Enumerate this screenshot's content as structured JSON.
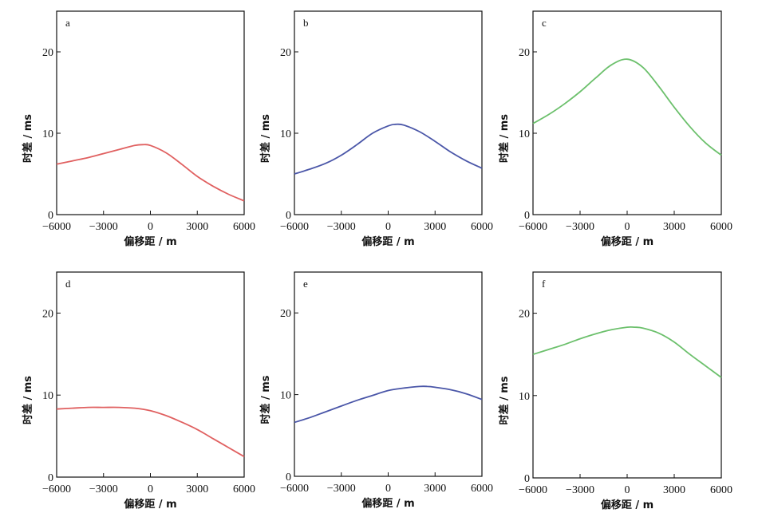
{
  "chart_data": [
    {
      "id": "a",
      "type": "line",
      "panel_label": "a",
      "xlabel": "偏移距 / m",
      "ylabel": "时差 / ms",
      "xlim": [
        -6000,
        6000
      ],
      "ylim": [
        0,
        25
      ],
      "xticks": [
        -6000,
        -3000,
        0,
        3000,
        6000
      ],
      "yticks": [
        0,
        10,
        20
      ],
      "series": [
        {
          "color": "#e06060",
          "x": [
            -6000,
            -5000,
            -4000,
            -3000,
            -2000,
            -1000,
            -500,
            0,
            1000,
            2000,
            3000,
            4000,
            5000,
            6000
          ],
          "y": [
            6.2,
            6.6,
            7.0,
            7.5,
            8.0,
            8.5,
            8.6,
            8.5,
            7.6,
            6.2,
            4.7,
            3.5,
            2.5,
            1.7
          ]
        }
      ]
    },
    {
      "id": "b",
      "type": "line",
      "panel_label": "b",
      "xlabel": "偏移距 / m",
      "ylabel": "时差 / ms",
      "xlim": [
        -6000,
        6000
      ],
      "ylim": [
        0,
        25
      ],
      "xticks": [
        -6000,
        -3000,
        0,
        3000,
        6000
      ],
      "yticks": [
        0,
        10,
        20
      ],
      "series": [
        {
          "color": "#4a56a8",
          "x": [
            -6000,
            -5000,
            -4000,
            -3000,
            -2000,
            -1000,
            0,
            500,
            1000,
            2000,
            3000,
            4000,
            5000,
            6000
          ],
          "y": [
            5.0,
            5.6,
            6.3,
            7.3,
            8.6,
            10.0,
            10.9,
            11.1,
            11.0,
            10.2,
            9.0,
            7.7,
            6.6,
            5.7
          ]
        }
      ]
    },
    {
      "id": "c",
      "type": "line",
      "panel_label": "c",
      "xlabel": "偏移距 / m",
      "ylabel": "时差 / ms",
      "xlim": [
        -6000,
        6000
      ],
      "ylim": [
        0,
        25
      ],
      "xticks": [
        -6000,
        -3000,
        0,
        3000,
        6000
      ],
      "yticks": [
        0,
        10,
        20
      ],
      "series": [
        {
          "color": "#6cc06c",
          "x": [
            -6000,
            -5000,
            -4000,
            -3000,
            -2000,
            -1000,
            0,
            1000,
            2000,
            3000,
            4000,
            5000,
            6000
          ],
          "y": [
            11.2,
            12.3,
            13.6,
            15.1,
            16.8,
            18.4,
            19.1,
            18.1,
            15.8,
            13.2,
            10.8,
            8.8,
            7.3
          ]
        }
      ]
    },
    {
      "id": "d",
      "type": "line",
      "panel_label": "d",
      "xlabel": "偏移距 / m",
      "ylabel": "时差 / ms",
      "xlim": [
        -6000,
        6000
      ],
      "ylim": [
        0,
        25
      ],
      "xticks": [
        -6000,
        -3000,
        0,
        3000,
        6000
      ],
      "yticks": [
        0,
        10,
        20
      ],
      "series": [
        {
          "color": "#e06060",
          "x": [
            -6000,
            -5000,
            -4000,
            -3000,
            -2000,
            -1000,
            0,
            1000,
            2000,
            3000,
            4000,
            5000,
            6000
          ],
          "y": [
            8.3,
            8.4,
            8.5,
            8.5,
            8.5,
            8.4,
            8.1,
            7.5,
            6.7,
            5.8,
            4.7,
            3.6,
            2.5
          ]
        }
      ]
    },
    {
      "id": "e",
      "type": "line",
      "panel_label": "e",
      "xlabel": "偏移距 / m",
      "ylabel": "时差 / ms",
      "xlim": [
        -6000,
        6000
      ],
      "ylim": [
        0,
        25
      ],
      "xticks": [
        -6000,
        -3000,
        0,
        3000,
        6000
      ],
      "yticks": [
        0,
        10,
        20
      ],
      "series": [
        {
          "color": "#4a56a8",
          "x": [
            -6000,
            -5000,
            -4000,
            -3000,
            -2000,
            -1000,
            0,
            1000,
            2000,
            2500,
            3000,
            4000,
            5000,
            6000
          ],
          "y": [
            6.6,
            7.2,
            7.9,
            8.6,
            9.3,
            9.9,
            10.5,
            10.8,
            11.0,
            11.0,
            10.9,
            10.6,
            10.1,
            9.4
          ]
        }
      ]
    },
    {
      "id": "f",
      "type": "line",
      "panel_label": "f",
      "xlabel": "偏移距 / m",
      "ylabel": "时差 / ms",
      "xlim": [
        -6000,
        6000
      ],
      "ylim": [
        0,
        25
      ],
      "xticks": [
        -6000,
        -3000,
        0,
        3000,
        6000
      ],
      "yticks": [
        0,
        10,
        20
      ],
      "series": [
        {
          "color": "#6cc06c",
          "x": [
            -6000,
            -5000,
            -4000,
            -3000,
            -2000,
            -1000,
            0,
            500,
            1000,
            2000,
            3000,
            4000,
            5000,
            6000
          ],
          "y": [
            15.0,
            15.6,
            16.2,
            16.9,
            17.5,
            18.0,
            18.3,
            18.3,
            18.2,
            17.6,
            16.5,
            15.0,
            13.6,
            12.2
          ]
        }
      ]
    }
  ]
}
